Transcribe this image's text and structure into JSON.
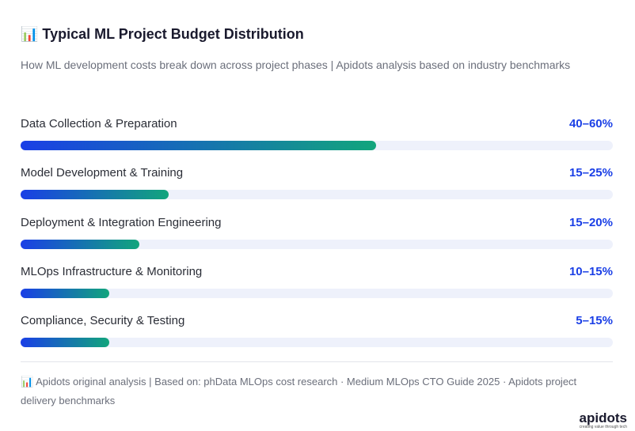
{
  "chart_data": {
    "type": "bar",
    "orientation": "horizontal",
    "title": "📊 Typical ML Project Budget Distribution",
    "subtitle": "How ML development costs break down across project phases | Apidots analysis based on industry benchmarks",
    "categories": [
      "Data Collection & Preparation",
      "Model Development & Training",
      "Deployment & Integration Engineering",
      "MLOps Infrastructure & Monitoring",
      "Compliance, Security & Testing"
    ],
    "values": [
      60,
      25,
      20,
      15,
      15
    ],
    "value_labels": [
      "40–60%",
      "15–25%",
      "15–20%",
      "10–15%",
      "5–15%"
    ],
    "xlim": [
      0,
      100
    ],
    "color_start": "#1a3fe6",
    "color_end": "#12a57c",
    "track_color": "#eef1fb",
    "label_color": "#1a3fe6",
    "note": "📊 Apidots original analysis | Based on: phData MLOps cost research · Medium MLOps CTO Guide 2025 · Apidots project delivery benchmarks",
    "logo": {
      "name": "apidots",
      "tagline": "creating value through tech"
    }
  }
}
